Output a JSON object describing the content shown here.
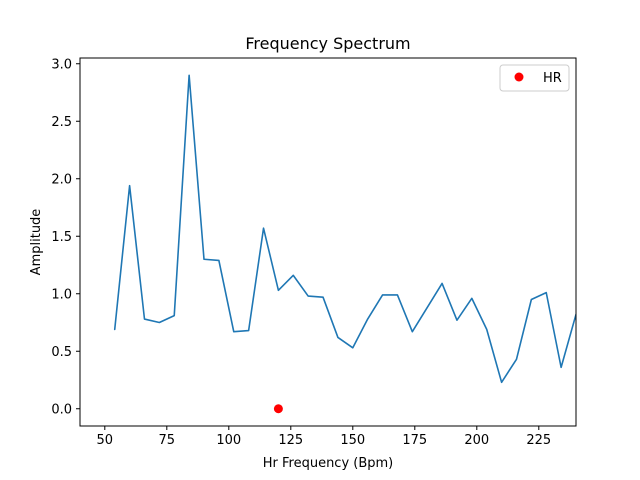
{
  "chart_data": {
    "type": "line",
    "title": "Frequency Spectrum",
    "xlabel": "Hr Frequency (Bpm)",
    "ylabel": "Amplitude",
    "xlim": [
      40,
      240
    ],
    "ylim": [
      -0.15,
      3.05
    ],
    "xticks": [
      50,
      75,
      100,
      125,
      150,
      175,
      200,
      225
    ],
    "yticks": [
      0.0,
      0.5,
      1.0,
      1.5,
      2.0,
      2.5,
      3.0
    ],
    "xtick_labels": [
      "50",
      "75",
      "100",
      "125",
      "150",
      "175",
      "200",
      "225"
    ],
    "ytick_labels": [
      "0.0",
      "0.5",
      "1.0",
      "1.5",
      "2.0",
      "2.5",
      "3.0"
    ],
    "grid": false,
    "legend_position": "top-right",
    "series": [
      {
        "type": "line",
        "color": "#1f77b4",
        "x": [
          54,
          60,
          66,
          72,
          78,
          84,
          90,
          96,
          102,
          108,
          114,
          120,
          126,
          132,
          138,
          144,
          150,
          156,
          162,
          168,
          174,
          180,
          186,
          192,
          198,
          204,
          210,
          216,
          222,
          228,
          234,
          240
        ],
        "y": [
          0.69,
          1.94,
          0.78,
          0.75,
          0.81,
          2.9,
          1.3,
          1.29,
          0.67,
          0.68,
          1.57,
          1.03,
          1.16,
          0.98,
          0.97,
          0.62,
          0.53,
          0.78,
          0.99,
          0.99,
          0.67,
          0.88,
          1.09,
          0.77,
          0.96,
          0.69,
          0.23,
          0.43,
          0.95,
          1.01,
          0.36,
          0.82
        ]
      },
      {
        "type": "scatter",
        "name": "HR",
        "color": "#ff0000",
        "x": [
          120
        ],
        "y": [
          0.0
        ]
      }
    ]
  }
}
